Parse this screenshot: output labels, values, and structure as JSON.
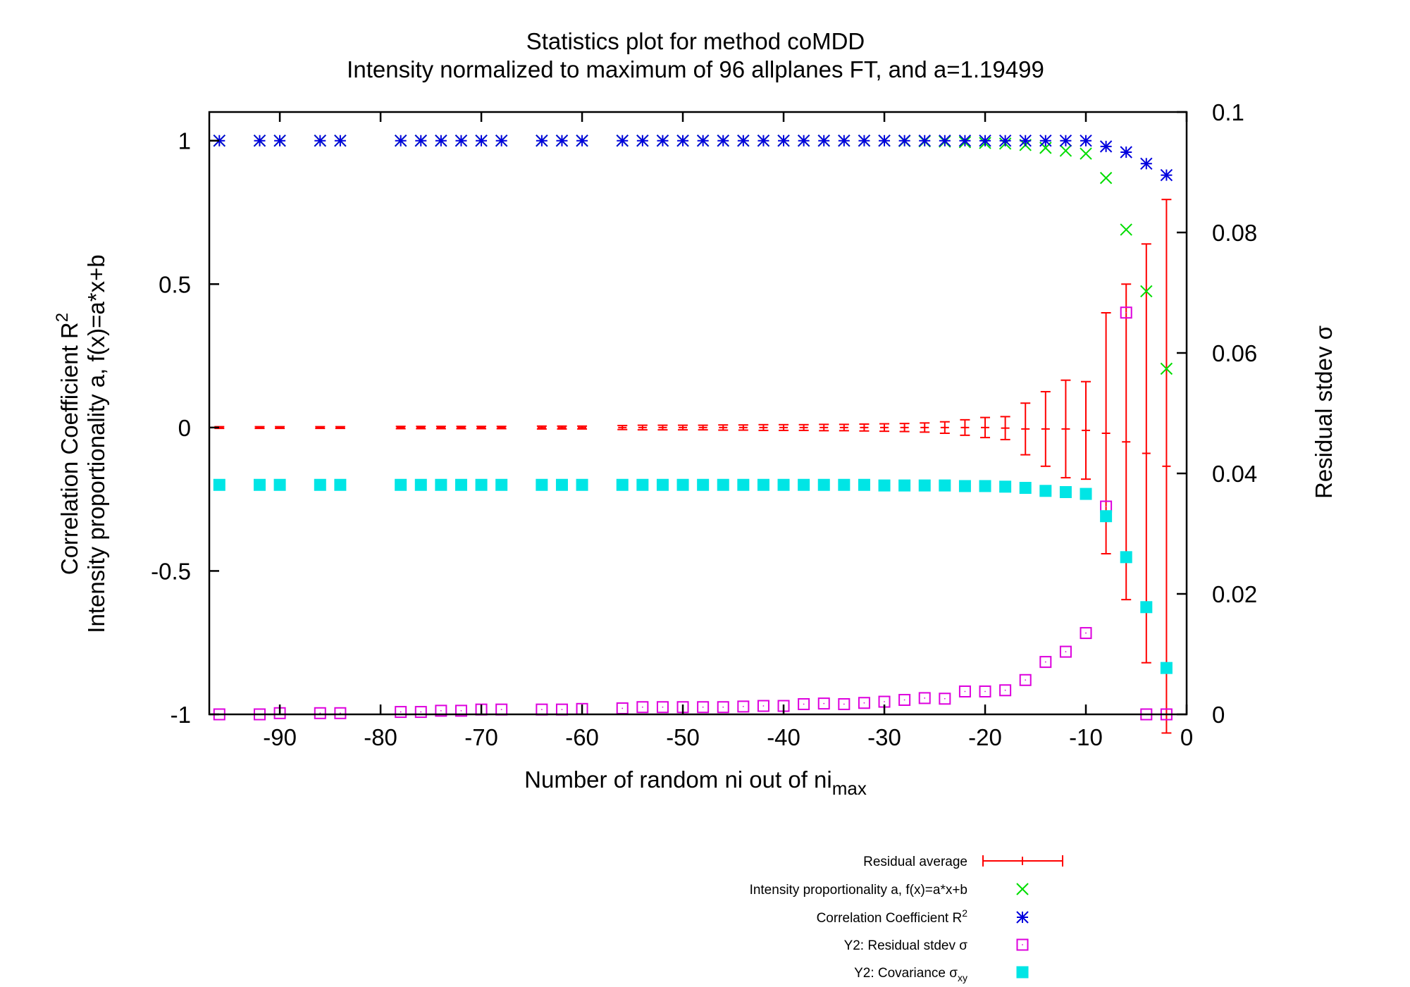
{
  "chart_data": {
    "type": "scatter",
    "title": "Statistics plot for method coMDD",
    "subtitle": "Intensity normalized to maximum of 96 allplanes FT, and a=1.19499",
    "xlabel_main": "Number of random ni out of ni",
    "xlabel_sub": "max",
    "ylabel_line1_main": "Correlation Coefficient R",
    "ylabel_line1_sup": "2",
    "ylabel_line2": "Intensity proportionality a, f(x)=a*x+b",
    "y2label": "Residual stdev σ",
    "xlim": [
      -97,
      0
    ],
    "ylim": [
      -1,
      1.1
    ],
    "y2lim": [
      0,
      0.1
    ],
    "xticks": [
      -90,
      -80,
      -70,
      -60,
      -50,
      -40,
      -30,
      -20,
      -10,
      0
    ],
    "yticks": [
      1,
      0.5,
      0,
      -0.5,
      -1
    ],
    "y2ticks": [
      0.1,
      0.08,
      0.06,
      0.04,
      0.02,
      0
    ],
    "grid": false,
    "legend_position": "bottom-right, below plot",
    "x": [
      -96,
      -92,
      -90,
      -86,
      -84,
      -78,
      -76,
      -74,
      -72,
      -70,
      -68,
      -64,
      -62,
      -60,
      -56,
      -54,
      -52,
      -50,
      -48,
      -46,
      -44,
      -42,
      -40,
      -38,
      -36,
      -34,
      -32,
      -30,
      -28,
      -26,
      -24,
      -22,
      -20,
      -18,
      -16,
      -14,
      -12,
      -10,
      -8,
      -6,
      -4,
      -2
    ],
    "series": [
      {
        "name": "Residual average",
        "axis": "y1",
        "style": "errorbar",
        "color": "#ff0000",
        "values": [
          0,
          0,
          0,
          0,
          0,
          0,
          0,
          0,
          0,
          0,
          0,
          0,
          0,
          0,
          0,
          0,
          0,
          0,
          0,
          0,
          0,
          0,
          0,
          0,
          0,
          0,
          0,
          0,
          0,
          0,
          0,
          0,
          0,
          -0.002,
          -0.005,
          -0.005,
          -0.005,
          -0.01,
          -0.02,
          -0.05,
          -0.09,
          -0.135
        ],
        "err": [
          0.003,
          0.003,
          0.003,
          0.003,
          0.003,
          0.004,
          0.004,
          0.004,
          0.004,
          0.004,
          0.004,
          0.005,
          0.005,
          0.005,
          0.007,
          0.008,
          0.008,
          0.008,
          0.008,
          0.009,
          0.009,
          0.01,
          0.01,
          0.01,
          0.011,
          0.011,
          0.012,
          0.013,
          0.014,
          0.016,
          0.02,
          0.027,
          0.035,
          0.04,
          0.09,
          0.13,
          0.17,
          0.17,
          0.42,
          0.55,
          0.73,
          0.93
        ]
      },
      {
        "name": "Intensity proportionality a, f(x)=a*x+b",
        "axis": "y1",
        "style": "x",
        "color": "#00dd00",
        "values": [
          1,
          1,
          1,
          1,
          1,
          1,
          1,
          1,
          1,
          1,
          1,
          1,
          1,
          1,
          1,
          1,
          1,
          1,
          1,
          1,
          1,
          1,
          1,
          1,
          1,
          1,
          1,
          1,
          0.999,
          0.998,
          0.997,
          0.995,
          0.992,
          0.99,
          0.985,
          0.975,
          0.965,
          0.955,
          0.87,
          0.69,
          0.475,
          0.205
        ]
      },
      {
        "name": "Correlation Coefficient R",
        "name_sup": "2",
        "axis": "y1",
        "style": "asterisk",
        "color": "#0000dd",
        "values": [
          1,
          1,
          1,
          1,
          1,
          1,
          1,
          1,
          1,
          1,
          1,
          1,
          1,
          1,
          1,
          1,
          1,
          1,
          1,
          1,
          1,
          1,
          1,
          1,
          1,
          1,
          1,
          1,
          1,
          1,
          1,
          1,
          1,
          1,
          1,
          1,
          1,
          1,
          0.98,
          0.96,
          0.92,
          0.88
        ]
      },
      {
        "name": "Y2: Residual stdev σ",
        "axis": "y2",
        "style": "open-square",
        "color": "#dd00dd",
        "values": [
          0,
          0,
          0.0002,
          0.0002,
          0.0002,
          0.0004,
          0.0004,
          0.0006,
          0.0006,
          0.0008,
          0.0008,
          0.0008,
          0.0008,
          0.0009,
          0.001,
          0.0012,
          0.0012,
          0.0012,
          0.0012,
          0.0012,
          0.0013,
          0.0014,
          0.0014,
          0.0017,
          0.0018,
          0.0017,
          0.0019,
          0.0021,
          0.0024,
          0.0027,
          0.0026,
          0.0038,
          0.0038,
          0.004,
          0.0057,
          0.0087,
          0.0104,
          0.0135,
          0.0345,
          0.0667,
          0,
          0
        ]
      },
      {
        "name": "Y2: Covariance σ",
        "name_sub": "xy",
        "axis": "y2",
        "style": "filled-square",
        "color": "#00e5e5",
        "values": [
          0.0381,
          0.0381,
          0.0381,
          0.0381,
          0.0381,
          0.0381,
          0.0381,
          0.0381,
          0.0381,
          0.0381,
          0.0381,
          0.0381,
          0.0381,
          0.0381,
          0.0381,
          0.0381,
          0.0381,
          0.0381,
          0.0381,
          0.0381,
          0.0381,
          0.0381,
          0.0381,
          0.0381,
          0.0381,
          0.0381,
          0.0381,
          0.038,
          0.038,
          0.038,
          0.038,
          0.0379,
          0.0379,
          0.0378,
          0.0376,
          0.0371,
          0.0369,
          0.0366,
          0.0329,
          0.0261,
          0.0178,
          0.0077
        ]
      }
    ]
  }
}
